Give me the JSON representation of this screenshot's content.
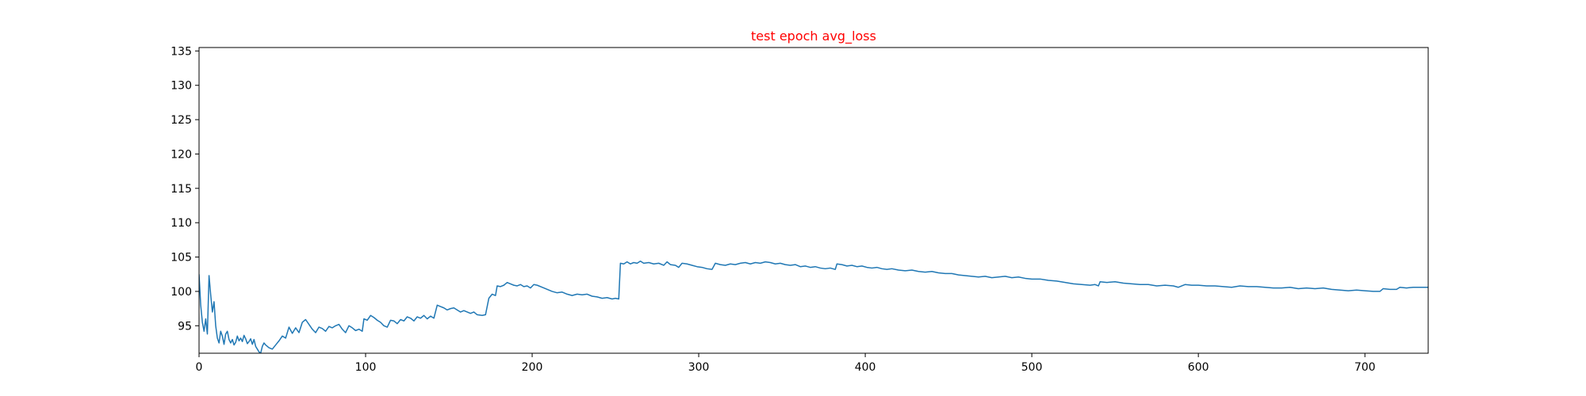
{
  "chart_data": {
    "type": "line",
    "title": "test epoch avg_loss",
    "title_color": "#ff0000",
    "xlabel": "",
    "ylabel": "",
    "xlim": [
      0,
      738
    ],
    "ylim": [
      91,
      135.5
    ],
    "xticks": [
      0,
      100,
      200,
      300,
      400,
      500,
      600,
      700
    ],
    "yticks": [
      95,
      100,
      105,
      110,
      115,
      120,
      125,
      130,
      135
    ],
    "grid": false,
    "series": [
      {
        "color": "#1f77b4",
        "points": [
          [
            0,
            102.5
          ],
          [
            1,
            98.0
          ],
          [
            2,
            95.5
          ],
          [
            3,
            94.2
          ],
          [
            4,
            96.0
          ],
          [
            5,
            93.8
          ],
          [
            6,
            102.3
          ],
          [
            7,
            99.5
          ],
          [
            8,
            97.0
          ],
          [
            9,
            98.5
          ],
          [
            10,
            95.0
          ],
          [
            11,
            93.2
          ],
          [
            12,
            92.5
          ],
          [
            13,
            94.2
          ],
          [
            14,
            93.5
          ],
          [
            15,
            92.3
          ],
          [
            16,
            93.8
          ],
          [
            17,
            94.2
          ],
          [
            18,
            93.0
          ],
          [
            19,
            92.5
          ],
          [
            20,
            93.0
          ],
          [
            21,
            92.2
          ],
          [
            22,
            92.6
          ],
          [
            23,
            93.5
          ],
          [
            24,
            92.8
          ],
          [
            25,
            93.2
          ],
          [
            26,
            92.7
          ],
          [
            27,
            93.6
          ],
          [
            28,
            93.1
          ],
          [
            29,
            92.4
          ],
          [
            30,
            92.7
          ],
          [
            31,
            93.1
          ],
          [
            32,
            92.3
          ],
          [
            33,
            93.0
          ],
          [
            34,
            92.0
          ],
          [
            35,
            91.6
          ],
          [
            36,
            91.2
          ],
          [
            37,
            91.0
          ],
          [
            38,
            92.0
          ],
          [
            39,
            92.5
          ],
          [
            40,
            92.2
          ],
          [
            41,
            92.0
          ],
          [
            42,
            91.8
          ],
          [
            44,
            91.6
          ],
          [
            46,
            92.2
          ],
          [
            48,
            92.8
          ],
          [
            50,
            93.5
          ],
          [
            52,
            93.2
          ],
          [
            54,
            94.8
          ],
          [
            56,
            93.9
          ],
          [
            58,
            94.7
          ],
          [
            60,
            94.0
          ],
          [
            62,
            95.5
          ],
          [
            64,
            95.9
          ],
          [
            66,
            95.2
          ],
          [
            68,
            94.5
          ],
          [
            70,
            94.0
          ],
          [
            72,
            94.8
          ],
          [
            74,
            94.6
          ],
          [
            76,
            94.2
          ],
          [
            78,
            94.9
          ],
          [
            80,
            94.7
          ],
          [
            82,
            95.0
          ],
          [
            84,
            95.2
          ],
          [
            86,
            94.5
          ],
          [
            88,
            94.0
          ],
          [
            90,
            95.0
          ],
          [
            92,
            94.7
          ],
          [
            94,
            94.3
          ],
          [
            96,
            94.5
          ],
          [
            98,
            94.2
          ],
          [
            99,
            96.0
          ],
          [
            101,
            95.8
          ],
          [
            103,
            96.5
          ],
          [
            105,
            96.2
          ],
          [
            107,
            95.8
          ],
          [
            109,
            95.5
          ],
          [
            111,
            95.0
          ],
          [
            113,
            94.8
          ],
          [
            115,
            95.8
          ],
          [
            117,
            95.7
          ],
          [
            119,
            95.3
          ],
          [
            121,
            95.9
          ],
          [
            123,
            95.7
          ],
          [
            125,
            96.3
          ],
          [
            127,
            96.1
          ],
          [
            129,
            95.7
          ],
          [
            131,
            96.3
          ],
          [
            133,
            96.1
          ],
          [
            135,
            96.5
          ],
          [
            137,
            96.0
          ],
          [
            139,
            96.4
          ],
          [
            141,
            96.1
          ],
          [
            143,
            98.0
          ],
          [
            145,
            97.8
          ],
          [
            147,
            97.6
          ],
          [
            149,
            97.3
          ],
          [
            151,
            97.5
          ],
          [
            153,
            97.6
          ],
          [
            155,
            97.3
          ],
          [
            157,
            97.0
          ],
          [
            159,
            97.2
          ],
          [
            161,
            97.0
          ],
          [
            163,
            96.8
          ],
          [
            165,
            97.0
          ],
          [
            167,
            96.6
          ],
          [
            170,
            96.5
          ],
          [
            172,
            96.6
          ],
          [
            174,
            99.0
          ],
          [
            176,
            99.6
          ],
          [
            178,
            99.4
          ],
          [
            179,
            100.8
          ],
          [
            181,
            100.7
          ],
          [
            183,
            100.9
          ],
          [
            185,
            101.3
          ],
          [
            187,
            101.1
          ],
          [
            189,
            100.9
          ],
          [
            191,
            100.8
          ],
          [
            193,
            101.0
          ],
          [
            195,
            100.7
          ],
          [
            197,
            100.8
          ],
          [
            199,
            100.5
          ],
          [
            201,
            101.0
          ],
          [
            203,
            100.9
          ],
          [
            206,
            100.6
          ],
          [
            209,
            100.3
          ],
          [
            212,
            100.0
          ],
          [
            215,
            99.8
          ],
          [
            218,
            99.9
          ],
          [
            221,
            99.6
          ],
          [
            224,
            99.4
          ],
          [
            227,
            99.6
          ],
          [
            230,
            99.5
          ],
          [
            233,
            99.6
          ],
          [
            236,
            99.3
          ],
          [
            239,
            99.2
          ],
          [
            242,
            99.0
          ],
          [
            245,
            99.1
          ],
          [
            248,
            98.9
          ],
          [
            250,
            99.0
          ],
          [
            252,
            98.9
          ],
          [
            253,
            104.1
          ],
          [
            255,
            104.0
          ],
          [
            257,
            104.3
          ],
          [
            259,
            104.0
          ],
          [
            261,
            104.2
          ],
          [
            263,
            104.1
          ],
          [
            265,
            104.4
          ],
          [
            267,
            104.1
          ],
          [
            270,
            104.2
          ],
          [
            273,
            104.0
          ],
          [
            276,
            104.1
          ],
          [
            279,
            103.8
          ],
          [
            281,
            104.3
          ],
          [
            283,
            103.9
          ],
          [
            286,
            103.8
          ],
          [
            288,
            103.5
          ],
          [
            290,
            104.1
          ],
          [
            293,
            104.0
          ],
          [
            296,
            103.8
          ],
          [
            299,
            103.6
          ],
          [
            302,
            103.5
          ],
          [
            305,
            103.3
          ],
          [
            308,
            103.2
          ],
          [
            310,
            104.1
          ],
          [
            313,
            103.9
          ],
          [
            316,
            103.8
          ],
          [
            319,
            104.0
          ],
          [
            322,
            103.9
          ],
          [
            325,
            104.1
          ],
          [
            328,
            104.2
          ],
          [
            331,
            104.0
          ],
          [
            334,
            104.2
          ],
          [
            337,
            104.1
          ],
          [
            340,
            104.3
          ],
          [
            343,
            104.2
          ],
          [
            346,
            104.0
          ],
          [
            349,
            104.1
          ],
          [
            352,
            103.9
          ],
          [
            355,
            103.8
          ],
          [
            358,
            103.9
          ],
          [
            361,
            103.6
          ],
          [
            364,
            103.7
          ],
          [
            367,
            103.5
          ],
          [
            370,
            103.6
          ],
          [
            373,
            103.4
          ],
          [
            376,
            103.3
          ],
          [
            379,
            103.4
          ],
          [
            382,
            103.2
          ],
          [
            383,
            104.0
          ],
          [
            386,
            103.9
          ],
          [
            389,
            103.7
          ],
          [
            392,
            103.8
          ],
          [
            395,
            103.6
          ],
          [
            398,
            103.7
          ],
          [
            401,
            103.5
          ],
          [
            404,
            103.4
          ],
          [
            407,
            103.5
          ],
          [
            410,
            103.3
          ],
          [
            413,
            103.2
          ],
          [
            416,
            103.3
          ],
          [
            420,
            103.1
          ],
          [
            424,
            103.0
          ],
          [
            428,
            103.1
          ],
          [
            432,
            102.9
          ],
          [
            436,
            102.8
          ],
          [
            440,
            102.9
          ],
          [
            444,
            102.7
          ],
          [
            448,
            102.6
          ],
          [
            452,
            102.6
          ],
          [
            456,
            102.4
          ],
          [
            460,
            102.3
          ],
          [
            464,
            102.2
          ],
          [
            468,
            102.1
          ],
          [
            472,
            102.2
          ],
          [
            476,
            102.0
          ],
          [
            480,
            102.1
          ],
          [
            484,
            102.2
          ],
          [
            488,
            102.0
          ],
          [
            492,
            102.1
          ],
          [
            496,
            101.9
          ],
          [
            500,
            101.8
          ],
          [
            505,
            101.8
          ],
          [
            510,
            101.6
          ],
          [
            515,
            101.5
          ],
          [
            520,
            101.3
          ],
          [
            525,
            101.1
          ],
          [
            530,
            101.0
          ],
          [
            535,
            100.9
          ],
          [
            538,
            101.0
          ],
          [
            540,
            100.8
          ],
          [
            541,
            101.4
          ],
          [
            545,
            101.3
          ],
          [
            550,
            101.4
          ],
          [
            555,
            101.2
          ],
          [
            560,
            101.1
          ],
          [
            565,
            101.0
          ],
          [
            570,
            101.0
          ],
          [
            575,
            100.8
          ],
          [
            580,
            100.9
          ],
          [
            585,
            100.8
          ],
          [
            588,
            100.6
          ],
          [
            592,
            101.0
          ],
          [
            596,
            100.9
          ],
          [
            600,
            100.9
          ],
          [
            605,
            100.8
          ],
          [
            610,
            100.8
          ],
          [
            615,
            100.7
          ],
          [
            620,
            100.6
          ],
          [
            625,
            100.8
          ],
          [
            630,
            100.7
          ],
          [
            635,
            100.7
          ],
          [
            640,
            100.6
          ],
          [
            645,
            100.5
          ],
          [
            650,
            100.5
          ],
          [
            655,
            100.6
          ],
          [
            660,
            100.4
          ],
          [
            665,
            100.5
          ],
          [
            670,
            100.4
          ],
          [
            675,
            100.5
          ],
          [
            680,
            100.3
          ],
          [
            685,
            100.2
          ],
          [
            690,
            100.1
          ],
          [
            695,
            100.2
          ],
          [
            700,
            100.1
          ],
          [
            705,
            100.0
          ],
          [
            709,
            100.0
          ],
          [
            711,
            100.4
          ],
          [
            715,
            100.3
          ],
          [
            719,
            100.3
          ],
          [
            721,
            100.6
          ],
          [
            725,
            100.5
          ],
          [
            729,
            100.6
          ],
          [
            733,
            100.6
          ],
          [
            738,
            100.6
          ]
        ]
      }
    ]
  }
}
